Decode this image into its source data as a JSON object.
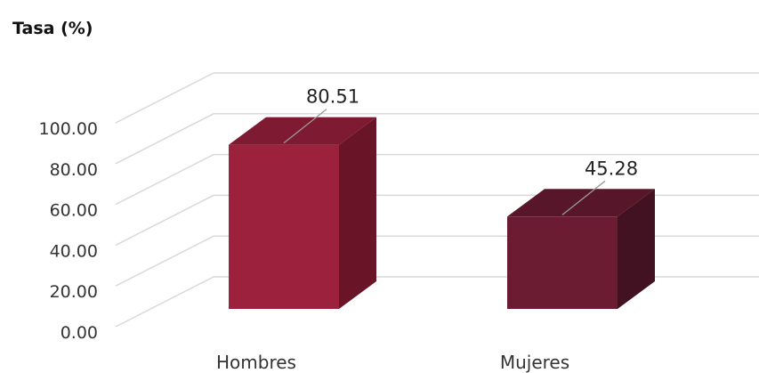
{
  "chart_data": {
    "type": "bar",
    "ylabel": "Tasa (%)",
    "categories": [
      "Hombres",
      "Mujeres"
    ],
    "values": [
      80.51,
      45.28
    ],
    "value_labels": [
      "80.51",
      "45.28"
    ],
    "ylim": [
      0,
      100
    ],
    "yticks": [
      "0.00",
      "20.00",
      "40.00",
      "60.00",
      "80.00",
      "100.00"
    ],
    "grid": true,
    "style": "3d-column",
    "colors": {
      "Hombres": {
        "front": "#9b213c",
        "side": "#6a1428",
        "top": "#7e1a31"
      },
      "Mujeres": {
        "front": "#6b1c33",
        "side": "#431222",
        "top": "#571629"
      },
      "grid": "#d9d9d9"
    }
  }
}
